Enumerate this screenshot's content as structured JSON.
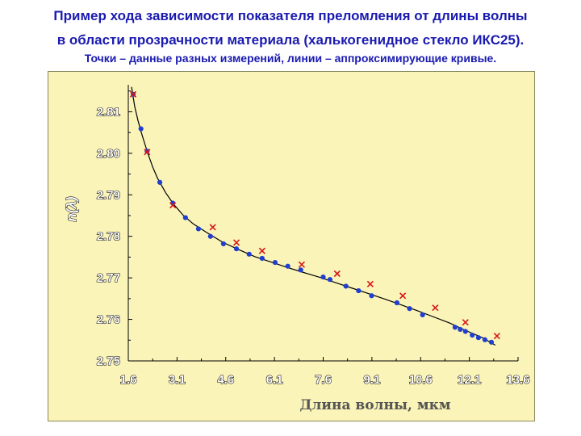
{
  "header": {
    "line1": "Пример хода зависимости показателя преломления от длины волны",
    "line2": "в области прозрачности материала (халькогенидное стекло ИКС25).",
    "line3": "Точки – данные разных измерений, линии – аппроксимирующие кривые."
  },
  "chart_data": {
    "type": "scatter",
    "xlabel": "Длина волны, мкм",
    "ylabel": "n(λ)",
    "xlim": [
      1.6,
      13.6
    ],
    "ylim": [
      2.75,
      2.8165
    ],
    "x_ticks": [
      "1.6",
      "3.1",
      "4.6",
      "6.1",
      "7.6",
      "9.1",
      "10.6",
      "12.1",
      "13.6"
    ],
    "y_ticks": [
      "2.75",
      "2.76",
      "2.77",
      "2.78",
      "2.79",
      "2.80",
      "2.81"
    ],
    "grid": false,
    "colors": {
      "measurements_a": "#1f3fd0",
      "measurements_b": "#d81818",
      "fit_curve": "#000000",
      "background": "#fbf4b8"
    },
    "series": [
      {
        "marker": "dot",
        "x": [
          1.75,
          1.99,
          2.18,
          2.57,
          2.97,
          3.36,
          3.76,
          4.13,
          4.53,
          4.93,
          5.32,
          5.72,
          6.12,
          6.51,
          6.91,
          7.6,
          7.81,
          8.3,
          8.69,
          9.09,
          9.87,
          10.26,
          10.66,
          11.66,
          11.82,
          11.98,
          12.19,
          12.38,
          12.58,
          12.78
        ],
        "y": [
          2.8142,
          2.8059,
          2.8005,
          2.793,
          2.788,
          2.7845,
          2.7818,
          2.78,
          2.7782,
          2.777,
          2.7757,
          2.7747,
          2.7737,
          2.7728,
          2.7719,
          2.7702,
          2.7696,
          2.768,
          2.7669,
          2.7657,
          2.764,
          2.7626,
          2.7611,
          2.7581,
          2.7576,
          2.7571,
          2.7562,
          2.7556,
          2.7551,
          2.7545
        ]
      },
      {
        "marker": "cross",
        "x": [
          1.75,
          2.18,
          2.97,
          4.2,
          4.93,
          5.72,
          6.94,
          8.03,
          9.05,
          10.05,
          11.05,
          11.98,
          12.95
        ],
        "y": [
          2.8142,
          2.8003,
          2.7875,
          2.7822,
          2.7785,
          2.7765,
          2.7732,
          2.771,
          2.7685,
          2.7657,
          2.7628,
          2.7593,
          2.756
        ]
      }
    ],
    "fit_curve": {
      "x": [
        1.7,
        1.8,
        1.9,
        2.0,
        2.1,
        2.2,
        2.35,
        2.5,
        2.75,
        3.0,
        3.3,
        3.6,
        4.0,
        4.5,
        5.0,
        5.5,
        6.0,
        6.5,
        7.0,
        7.5,
        8.0,
        8.5,
        9.0,
        9.5,
        10.0,
        10.5,
        11.0,
        11.5,
        12.0,
        12.5,
        12.9
      ],
      "y": [
        2.816,
        2.8112,
        2.8078,
        2.805,
        2.8025,
        2.8,
        2.7967,
        2.794,
        2.7905,
        2.7877,
        2.785,
        2.783,
        2.781,
        2.7786,
        2.7768,
        2.7751,
        2.7738,
        2.7725,
        2.7713,
        2.7701,
        2.7688,
        2.7675,
        2.7662,
        2.7649,
        2.7635,
        2.7621,
        2.7606,
        2.7591,
        2.7573,
        2.7556,
        2.7538
      ]
    }
  }
}
